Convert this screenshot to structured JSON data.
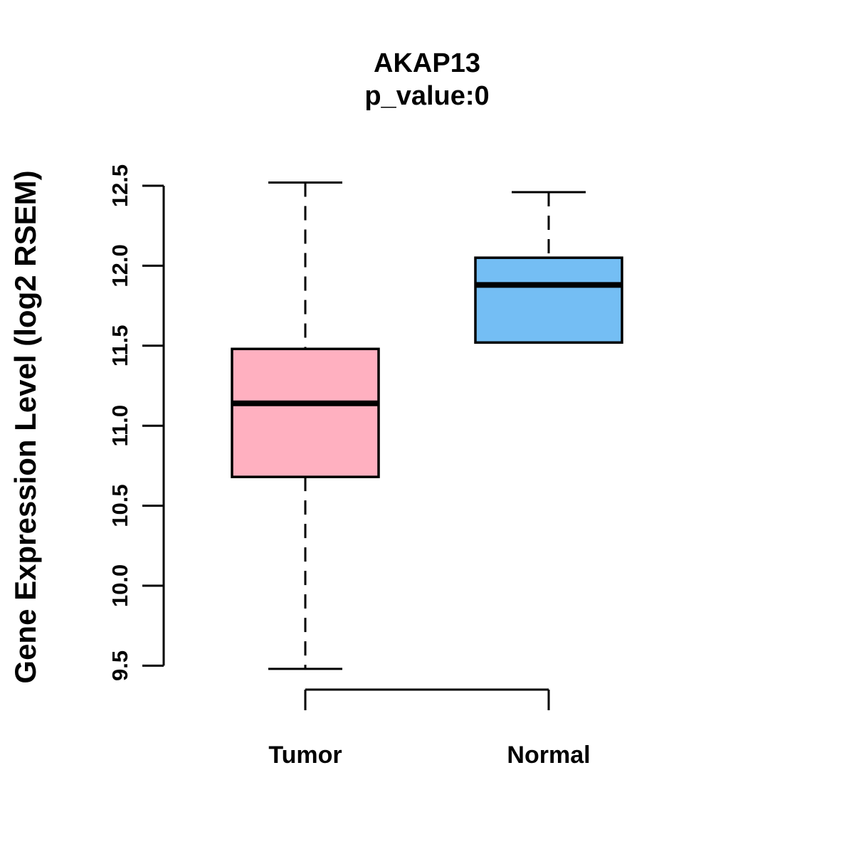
{
  "title": "AKAP13",
  "subtitle": "p_value:0",
  "ylabel": "Gene Expression Level (log2 RSEM)",
  "colors": {
    "tumor_box": "#FFB0C0",
    "normal_box": "#74BEF4",
    "line": "#000000",
    "background": "#FFFFFF"
  },
  "chart_data": {
    "type": "boxplot",
    "title": "AKAP13",
    "subtitle": "p_value:0",
    "xlabel": "",
    "ylabel": "Gene Expression Level (log2 RSEM)",
    "categories": [
      "Tumor",
      "Normal"
    ],
    "ytick_labels": [
      "9.5",
      "10.0",
      "10.5",
      "11.0",
      "11.5",
      "12.0",
      "12.5"
    ],
    "yticks": [
      9.5,
      10.0,
      10.5,
      11.0,
      11.5,
      12.0,
      12.5
    ],
    "ylim": [
      9.5,
      12.5
    ],
    "grid": false,
    "legend": "none",
    "series": [
      {
        "name": "Tumor",
        "color": "#FFB0C0",
        "whisker_low": 9.48,
        "q1": 10.68,
        "median": 11.14,
        "q3": 11.48,
        "whisker_high": 12.52
      },
      {
        "name": "Normal",
        "color": "#74BEF4",
        "whisker_low": 11.52,
        "q1": 11.52,
        "median": 11.88,
        "q3": 12.05,
        "whisker_high": 12.46
      }
    ]
  }
}
